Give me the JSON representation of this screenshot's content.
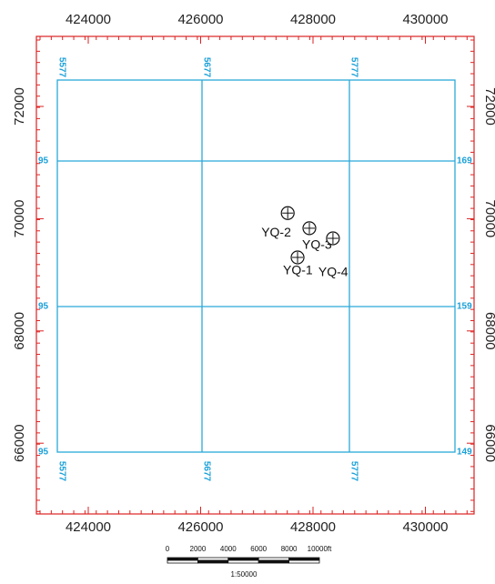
{
  "map": {
    "x_axis": {
      "ticks": [
        424000,
        426000,
        428000,
        430000
      ]
    },
    "y_axis": {
      "ticks": [
        72000,
        70000,
        68000,
        66000
      ]
    },
    "grid_labels": {
      "columns": [
        "5577",
        "5677",
        "5777"
      ],
      "left_rows": [
        "95",
        "95",
        "95"
      ],
      "right_rows": [
        "169",
        "159",
        "149"
      ]
    },
    "wells": [
      {
        "label": "YQ-2",
        "x": 427550,
        "y": 70100
      },
      {
        "label": "YQ-3",
        "x": 427935,
        "y": 69830
      },
      {
        "label": "YQ-4",
        "x": 428355,
        "y": 69650
      },
      {
        "label": "YQ-1",
        "x": 427725,
        "y": 69310
      }
    ],
    "scale_bar": {
      "labels": [
        "0",
        "2000",
        "4000",
        "6000",
        "8000",
        "10000ft"
      ],
      "ratio": "1:50000"
    }
  }
}
